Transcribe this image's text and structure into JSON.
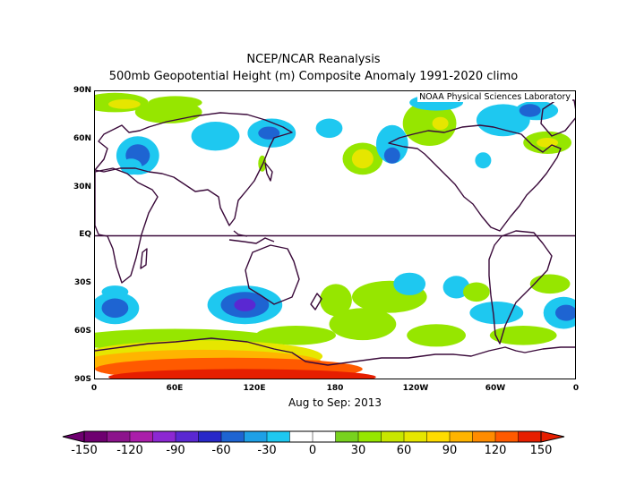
{
  "title": "NCEP/NCAR Reanalysis",
  "subtitle": "500mb Geopotential Height (m) Composite Anomaly 1991-2020 climo",
  "credit": "NOAA Physical Sciences Laboratory",
  "caption": "Aug to Sep: 2013",
  "lat_labels": [
    "90N",
    "60N",
    "30N",
    "EQ",
    "30S",
    "60S",
    "90S"
  ],
  "lon_labels": [
    "0",
    "60E",
    "120E",
    "180",
    "120W",
    "60W",
    "0"
  ],
  "colorbar": {
    "labels": [
      "-150",
      "-120",
      "-90",
      "-60",
      "-30",
      "0",
      "30",
      "60",
      "90",
      "120",
      "150"
    ],
    "colors": [
      "#6e0070",
      "#8c148c",
      "#aa1eaa",
      "#8c28d2",
      "#5a28d2",
      "#2828c8",
      "#1e64d2",
      "#1ea0e6",
      "#1ec8f0",
      "#ffffff",
      "#ffffff",
      "#78d21e",
      "#96e600",
      "#c8e600",
      "#e6e600",
      "#ffdc00",
      "#ffb400",
      "#ff8c00",
      "#ff5a00",
      "#e61e00"
    ]
  },
  "anomaly_blobs": [
    {
      "lon": 15,
      "lat": 83,
      "rx": 25,
      "ry": 6,
      "value": 30
    },
    {
      "lon": 22,
      "lat": 82,
      "rx": 12,
      "ry": 3,
      "value": 60
    },
    {
      "lon": 55,
      "lat": 77,
      "rx": 25,
      "ry": 7,
      "value": 30
    },
    {
      "lon": 60,
      "lat": 83,
      "rx": 20,
      "ry": 4,
      "value": 30
    },
    {
      "lon": 32,
      "lat": 50,
      "rx": 16,
      "ry": 12,
      "value": -30
    },
    {
      "lon": 32,
      "lat": 50,
      "rx": 9,
      "ry": 7,
      "value": -60
    },
    {
      "lon": 27,
      "lat": 43,
      "rx": 8,
      "ry": 5,
      "value": -30
    },
    {
      "lon": 90,
      "lat": 62,
      "rx": 18,
      "ry": 9,
      "value": -30
    },
    {
      "lon": 132,
      "lat": 64,
      "rx": 18,
      "ry": 9,
      "value": -30
    },
    {
      "lon": 130,
      "lat": 64,
      "rx": 8,
      "ry": 4,
      "value": -60
    },
    {
      "lon": 125,
      "lat": 45,
      "rx": 3,
      "ry": 5,
      "value": 30
    },
    {
      "lon": 175,
      "lat": 67,
      "rx": 10,
      "ry": 6,
      "value": -30
    },
    {
      "lon": 200,
      "lat": 48,
      "rx": 15,
      "ry": 10,
      "value": 30
    },
    {
      "lon": 200,
      "lat": 48,
      "rx": 8,
      "ry": 6,
      "value": 60
    },
    {
      "lon": 222,
      "lat": 57,
      "rx": 12,
      "ry": 12,
      "value": -30
    },
    {
      "lon": 222,
      "lat": 50,
      "rx": 6,
      "ry": 5,
      "value": -60
    },
    {
      "lon": 250,
      "lat": 70,
      "rx": 20,
      "ry": 14,
      "value": 30
    },
    {
      "lon": 258,
      "lat": 70,
      "rx": 6,
      "ry": 4,
      "value": 60
    },
    {
      "lon": 255,
      "lat": 83,
      "rx": 20,
      "ry": 5,
      "value": -30
    },
    {
      "lon": 305,
      "lat": 72,
      "rx": 20,
      "ry": 10,
      "value": -30
    },
    {
      "lon": 330,
      "lat": 78,
      "rx": 16,
      "ry": 6,
      "value": -30
    },
    {
      "lon": 325,
      "lat": 78,
      "rx": 8,
      "ry": 4,
      "value": -60
    },
    {
      "lon": 290,
      "lat": 47,
      "rx": 6,
      "ry": 5,
      "value": -30
    },
    {
      "lon": 338,
      "lat": 58,
      "rx": 18,
      "ry": 7,
      "value": 30
    },
    {
      "lon": 338,
      "lat": 58,
      "rx": 8,
      "ry": 3,
      "value": 60
    },
    {
      "lon": 15,
      "lat": -45,
      "rx": 18,
      "ry": 10,
      "value": -30
    },
    {
      "lon": 15,
      "lat": -45,
      "rx": 10,
      "ry": 6,
      "value": -60
    },
    {
      "lon": 15,
      "lat": -35,
      "rx": 10,
      "ry": 4,
      "value": -30
    },
    {
      "lon": 112,
      "lat": -43,
      "rx": 28,
      "ry": 12,
      "value": -30
    },
    {
      "lon": 112,
      "lat": -43,
      "rx": 18,
      "ry": 8,
      "value": -60
    },
    {
      "lon": 112,
      "lat": -43,
      "rx": 8,
      "ry": 4,
      "value": -90
    },
    {
      "lon": 220,
      "lat": -38,
      "rx": 28,
      "ry": 10,
      "value": 30
    },
    {
      "lon": 200,
      "lat": -55,
      "rx": 25,
      "ry": 10,
      "value": 30
    },
    {
      "lon": 180,
      "lat": -40,
      "rx": 12,
      "ry": 10,
      "value": 30
    },
    {
      "lon": 235,
      "lat": -30,
      "rx": 12,
      "ry": 7,
      "value": -30
    },
    {
      "lon": 270,
      "lat": -32,
      "rx": 10,
      "ry": 7,
      "value": -30
    },
    {
      "lon": 285,
      "lat": -35,
      "rx": 10,
      "ry": 6,
      "value": 30
    },
    {
      "lon": 340,
      "lat": -30,
      "rx": 15,
      "ry": 6,
      "value": 30
    },
    {
      "lon": 300,
      "lat": -48,
      "rx": 20,
      "ry": 7,
      "value": -30
    },
    {
      "lon": 350,
      "lat": -48,
      "rx": 15,
      "ry": 10,
      "value": -30
    },
    {
      "lon": 352,
      "lat": -48,
      "rx": 8,
      "ry": 5,
      "value": -60
    },
    {
      "lon": 255,
      "lat": -62,
      "rx": 22,
      "ry": 7,
      "value": 30
    },
    {
      "lon": 320,
      "lat": -62,
      "rx": 25,
      "ry": 6,
      "value": 30
    },
    {
      "lon": 60,
      "lat": -65,
      "rx": 80,
      "ry": 7,
      "value": 30
    },
    {
      "lon": 150,
      "lat": -62,
      "rx": 30,
      "ry": 6,
      "value": 30
    },
    {
      "lon": 80,
      "lat": -75,
      "rx": 90,
      "ry": 10,
      "value": 60
    },
    {
      "lon": 80,
      "lat": -79,
      "rx": 90,
      "ry": 8,
      "value": 90
    },
    {
      "lon": 100,
      "lat": -83,
      "rx": 100,
      "ry": 7,
      "value": 120
    },
    {
      "lon": 110,
      "lat": -88,
      "rx": 100,
      "ry": 5,
      "value": 150
    }
  ]
}
